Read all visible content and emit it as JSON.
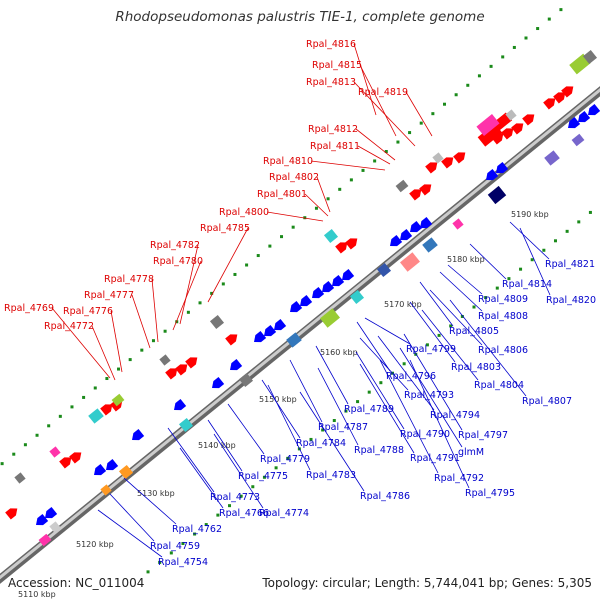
{
  "title": "Rhodopseudomonas palustris TIE-1, complete genome",
  "footer": {
    "accession": "Accession: NC_011004",
    "topology": "Topology: circular; Length: 5,744,041 bp; Genes: 5,305"
  },
  "colors": {
    "forward": "#ff0000",
    "reverse": "#0000ff",
    "backbone_dark": "#666666",
    "backbone_light": "#cccccc",
    "dots": "#1a8a1a",
    "fwd_label": "#dd0000",
    "rev_label": "#0000cc",
    "cds_cyan": "#33cccc",
    "cds_magenta": "#ff33aa",
    "cds_green": "#99cc33",
    "cds_orange": "#ff9922",
    "cds_gray": "#777777",
    "cds_navy": "#000066",
    "cds_purple": "#7766cc"
  },
  "scale_labels": [
    "5110 kbp",
    "5120 kbp",
    "5130 kbp",
    "5140 kbp",
    "5150 kbp",
    "5160 kbp",
    "5170 kbp",
    "5180 kbp",
    "5190 kbp"
  ],
  "forward_labels": [
    "Rpal_4816",
    "Rpal_4815",
    "Rpal_4813",
    "Rpal_4819",
    "Rpal_4812",
    "Rpal_4811",
    "Rpal_4810",
    "Rpal_4802",
    "Rpal_4801",
    "Rpal_4800",
    "Rpal_4785",
    "Rpal_4782",
    "Rpal_4780",
    "Rpal_4778",
    "Rpal_4777",
    "Rpal_4769",
    "Rpal_4776",
    "Rpal_4772"
  ],
  "reverse_labels": [
    "Rpal_4821",
    "Rpal_4814",
    "Rpal_4820",
    "Rpal_4809",
    "Rpal_4808",
    "Rpal_4805",
    "Rpal_4806",
    "Rpal_4799",
    "Rpal_4803",
    "Rpal_4796",
    "Rpal_4804",
    "Rpal_4807",
    "Rpal_4793",
    "Rpal_4789",
    "Rpal_4794",
    "Rpal_4787",
    "Rpal_4790",
    "Rpal_4797",
    "Rpal_4784",
    "Rpal_4788",
    "glmM",
    "Rpal_4779",
    "Rpal_4783",
    "Rpal_4791",
    "Rpal_4775",
    "Rpal_4792",
    "Rpal_4773",
    "Rpal_4786",
    "Rpal_4795",
    "Rpal_4766",
    "Rpal_4774",
    "Rpal_4762",
    "Rpal_4759",
    "Rpal_4754"
  ]
}
